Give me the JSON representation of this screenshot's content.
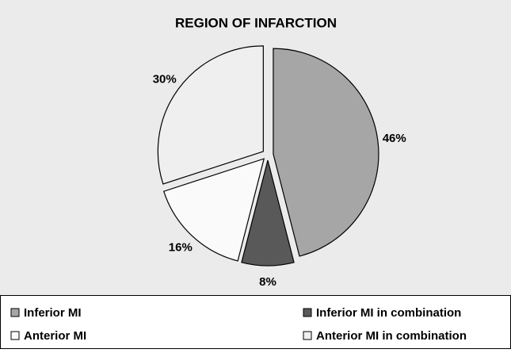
{
  "chart_data": {
    "type": "pie",
    "title": "REGION OF INFARCTION",
    "categories": [
      "Inferior MI",
      "Inferior MI in combination",
      "Anterior MI",
      "Anterior MI in combination"
    ],
    "values": [
      46,
      8,
      16,
      30
    ],
    "value_labels": [
      "46%",
      "8%",
      "16%",
      "30%"
    ],
    "colors": [
      "#a6a6a6",
      "#595959",
      "#fafafa",
      "#efefef"
    ],
    "legend": "bottom"
  }
}
